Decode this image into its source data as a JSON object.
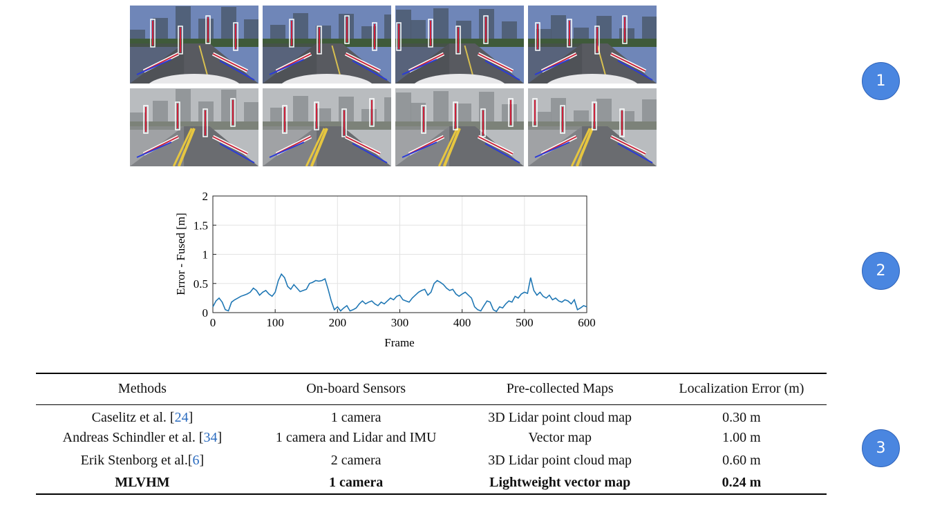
{
  "markers": [
    "1",
    "2",
    "3"
  ],
  "chart_data": {
    "type": "line",
    "xlabel": "Frame",
    "ylabel": "Error - Fused [m]",
    "xlim": [
      0,
      600
    ],
    "ylim": [
      0,
      2
    ],
    "xticks": [
      "0",
      "100",
      "200",
      "300",
      "400",
      "500",
      "600"
    ],
    "yticks": [
      "0",
      "0.5",
      "1",
      "1.5",
      "2"
    ],
    "grid": true,
    "color": "#1f77b4",
    "x": [
      0,
      5,
      10,
      15,
      20,
      25,
      30,
      35,
      40,
      45,
      50,
      55,
      60,
      65,
      70,
      75,
      80,
      85,
      90,
      95,
      100,
      105,
      110,
      115,
      120,
      125,
      130,
      135,
      140,
      145,
      150,
      155,
      160,
      165,
      170,
      175,
      180,
      185,
      190,
      195,
      200,
      205,
      210,
      215,
      220,
      225,
      230,
      235,
      240,
      245,
      250,
      255,
      260,
      265,
      270,
      275,
      280,
      285,
      290,
      295,
      300,
      305,
      310,
      315,
      320,
      325,
      330,
      335,
      340,
      345,
      350,
      355,
      360,
      365,
      370,
      375,
      380,
      385,
      390,
      395,
      400,
      405,
      410,
      415,
      420,
      425,
      430,
      435,
      440,
      445,
      450,
      455,
      460,
      465,
      470,
      475,
      480,
      485,
      490,
      495,
      500,
      505,
      510,
      515,
      520,
      525,
      530,
      535,
      540,
      545,
      550,
      555,
      560,
      565,
      570,
      575,
      580,
      585,
      590,
      595,
      600
    ],
    "y": [
      0.1,
      0.2,
      0.25,
      0.18,
      0.05,
      0.03,
      0.18,
      0.22,
      0.25,
      0.28,
      0.3,
      0.32,
      0.35,
      0.42,
      0.38,
      0.3,
      0.35,
      0.38,
      0.32,
      0.28,
      0.35,
      0.55,
      0.66,
      0.6,
      0.45,
      0.4,
      0.48,
      0.42,
      0.36,
      0.38,
      0.4,
      0.5,
      0.52,
      0.55,
      0.54,
      0.55,
      0.58,
      0.4,
      0.2,
      0.05,
      0.1,
      0.03,
      0.08,
      0.12,
      0.03,
      0.05,
      0.08,
      0.15,
      0.2,
      0.15,
      0.18,
      0.2,
      0.15,
      0.12,
      0.18,
      0.15,
      0.2,
      0.25,
      0.22,
      0.28,
      0.3,
      0.22,
      0.2,
      0.18,
      0.25,
      0.3,
      0.35,
      0.38,
      0.4,
      0.3,
      0.35,
      0.5,
      0.55,
      0.52,
      0.48,
      0.42,
      0.38,
      0.4,
      0.32,
      0.28,
      0.32,
      0.35,
      0.3,
      0.25,
      0.1,
      0.05,
      0.03,
      0.12,
      0.2,
      0.18,
      0.05,
      0.02,
      0.1,
      0.08,
      0.15,
      0.2,
      0.18,
      0.28,
      0.25,
      0.32,
      0.35,
      0.33,
      0.6,
      0.38,
      0.3,
      0.35,
      0.28,
      0.25,
      0.3,
      0.22,
      0.25,
      0.2,
      0.18,
      0.22,
      0.2,
      0.15,
      0.22,
      0.05,
      0.08,
      0.12,
      0.1
    ]
  },
  "table": {
    "headers": [
      "Methods",
      "On-board Sensors",
      "Pre-collected Maps",
      "Localization Error (m)"
    ],
    "rows": [
      {
        "method": "Caselitz et al. [",
        "cite": "24",
        "method_end": "]",
        "sensors": "1 camera",
        "maps": "3D Lidar point cloud map",
        "error": "0.30 m"
      },
      {
        "method": "Andreas Schindler et al. [",
        "cite": "34",
        "method_end": "]",
        "sensors": "1 camera and Lidar and IMU",
        "maps": "Vector map",
        "error": "1.00 m"
      },
      {
        "method": "Erik Stenborg et al.[",
        "cite": "6",
        "method_end": "]",
        "sensors": "2 camera",
        "maps": "3D Lidar point cloud map",
        "error": "0.60 m"
      },
      {
        "method": "MLVHM",
        "cite": "",
        "method_end": "",
        "sensors": "1 camera",
        "maps": "Lightweight vector map",
        "error": "0.24 m"
      }
    ]
  },
  "photos": {
    "rows": 2,
    "cols": 4,
    "row1_sky": "#6f86b8",
    "row2_sky": "#b9bcbf"
  }
}
